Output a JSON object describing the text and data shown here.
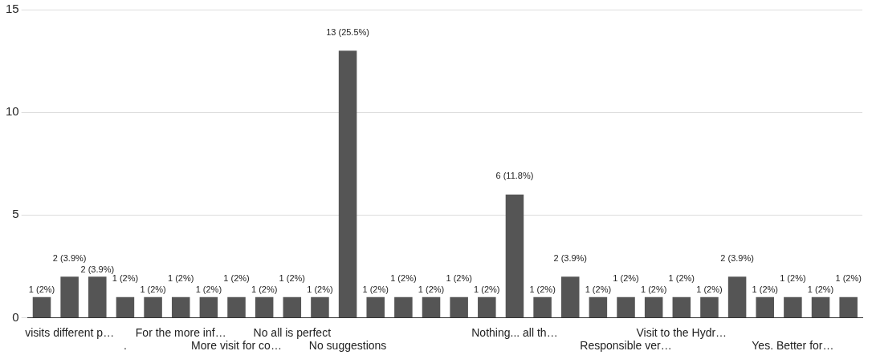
{
  "chart_data": {
    "type": "bar",
    "categories": [
      null,
      "visits different p…",
      null,
      ".",
      null,
      "For the more inf…",
      null,
      "More visit for co…",
      null,
      "No all is perfect",
      null,
      "No suggestions",
      null,
      null,
      null,
      null,
      null,
      "Nothing... all th…",
      null,
      null,
      null,
      "Responsible ver…",
      null,
      "Visit to the Hydr…",
      null,
      null,
      null,
      "Yes. Better for…",
      null,
      null
    ],
    "values": [
      1,
      2,
      2,
      1,
      1,
      1,
      1,
      1,
      1,
      1,
      1,
      13,
      1,
      1,
      1,
      1,
      1,
      6,
      1,
      2,
      1,
      1,
      1,
      1,
      1,
      2,
      1,
      1,
      1,
      1
    ],
    "value_labels": [
      "1 (2%)",
      "2 (3.9%)",
      "2 (3.9%)",
      "1 (2%)",
      "1 (2%)",
      "1 (2%)",
      "1 (2%)",
      "1 (2%)",
      "1 (2%)",
      "1 (2%)",
      "1 (2%)",
      "13 (25.5%)",
      "1 (2%)",
      "1 (2%)",
      "1 (2%)",
      "1 (2%)",
      "1 (2%)",
      "6 (11.8%)",
      "1 (2%)",
      "2 (3.9%)",
      "1 (2%)",
      "1 (2%)",
      "1 (2%)",
      "1 (2%)",
      "1 (2%)",
      "2 (3.9%)",
      "1 (2%)",
      "1 (2%)",
      "1 (2%)",
      "1 (2%)"
    ],
    "color": "#555555",
    "ylim": [
      0,
      15
    ],
    "yticks": [
      0,
      5,
      10,
      15
    ],
    "grid": "y",
    "legend": false
  }
}
